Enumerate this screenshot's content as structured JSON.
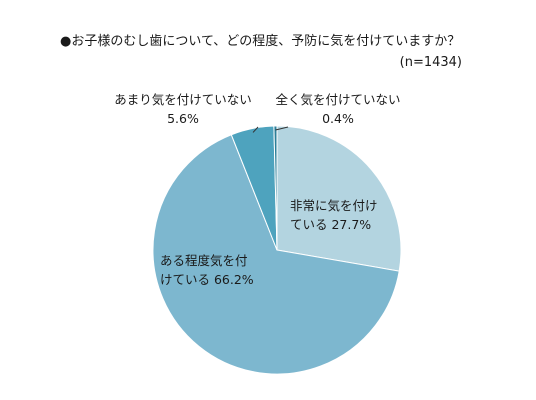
{
  "chart_data": {
    "type": "pie",
    "title": "●お子様のむし歯について、どの程度、予防に気を付けていますか？",
    "subtitle": "(n=1434)",
    "unit": "%",
    "start": "12 o'clock",
    "direction": "clockwise",
    "slices": [
      {
        "label_lines": [
          "非常に気を付け",
          "ている 27.7%"
        ],
        "value": 27.7,
        "color": "#b3d4e0"
      },
      {
        "label_lines": [
          "ある程度気を付",
          "けている 66.2%"
        ],
        "value": 66.2,
        "color": "#7db7cf"
      },
      {
        "label_lines": [
          "あまり気を付けていない",
          "5.6%"
        ],
        "value": 5.6,
        "color": "#4ea3be"
      },
      {
        "label_lines": [
          "全く気を付けていない",
          "0.4%"
        ],
        "value": 0.4,
        "color": "#2c7f99"
      }
    ]
  }
}
